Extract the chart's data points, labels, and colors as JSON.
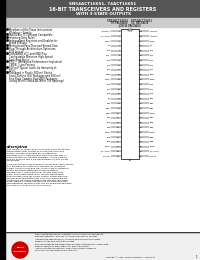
{
  "title_line1": "SN54ACT16651, 74ACT16651",
  "title_line2": "16-BIT TRANSCEIVERS AND REGISTERS",
  "title_line3": "WITH 3-STATE OUTPUTS",
  "bg_color": "#ffffff",
  "header_bg": "#888888",
  "bullet_groups": [
    [
      true,
      "Members of the Texas Instruments"
    ],
    [
      false,
      "Widebus™ Family"
    ],
    [
      true,
      "Inputs Are TTL-Voltage Compatible"
    ],
    [
      true,
      "Inverting Data Paths"
    ],
    [
      true,
      "Independent Registers and Enables for"
    ],
    [
      false,
      "A and B Buses"
    ],
    [
      true,
      "Multiplexed Pass-Thru and Stored Data"
    ],
    [
      true,
      "Flow-Through Architecture Optimizes"
    ],
    [
      false,
      "PCB Layout"
    ],
    [
      true,
      "Distributed VCC and GND Pins"
    ],
    [
      false,
      "Configurable Minimize High-Speed"
    ],
    [
      false,
      "Switching Noise"
    ],
    [
      true,
      "EPIC™ (Enhanced Performance Implanted"
    ],
    [
      false,
      "CMOS) 1-μm Process"
    ],
    [
      true,
      "500-mV Typical Latch-Up Immunity at"
    ],
    [
      false,
      "125°C"
    ],
    [
      true,
      "Packaged in Plastic 300-mil Shrink"
    ],
    [
      false,
      "Small-Outline (DL) Packages and 380-mil"
    ],
    [
      false,
      "Fine-Pitch Ceramic Flat (WD) Packages"
    ],
    [
      false,
      "(using 96-mil Tested-At-Tester Tile Spacings)"
    ]
  ],
  "description_title": "description",
  "desc_para1": "The SN54ACT16651 and 74ACT16651 are 16-bit bus transceivers that consist of 3-type flip-flops and control circuitry arranged for multiplexed transmission of data directly from the data bus or from the internal storage registers. These devices can be used as two 8-bit transceivers or one 16-bit transceiver.",
  "desc_para2": "Complementary output-enable (CEAB and CEBA) inputs are provided to control the transceiver functions. Select-control (SAB and SBA) inputs are provided to select whether registered or stored data is transferred. A low-input level selects pass-thru data, and a high input level selects stored data. The circuitry used for select control eliminates the typical bouncing glitch that occurs in a multiplexer during the transition between stored and real-time data. Figure 1 illustrates the four fundamental bus management functions that can be implemented with the SN54ACT16651 and 74ACT16651.",
  "pin_header_left": "SN54ACT16651",
  "pin_header_right": "SN74ACT16651",
  "pin_header2_left": "FK PACKAGE",
  "pin_header2_right": "DL PACKAGE",
  "pin_header3": "J-OR-W PACKAGE",
  "pin_rows": [
    [
      "1(2846)",
      "2",
      "39",
      "1(2846)",
      "A1OE6A"
    ],
    [
      "5(1,4,56)",
      "4",
      "38",
      "5(1,4,56)",
      "A1OE6A"
    ],
    [
      "C048",
      "5",
      "37",
      "C048",
      "C048"
    ],
    [
      "14",
      "6",
      "36",
      "14",
      "14"
    ],
    [
      "143",
      "7",
      "35",
      "143",
      "143"
    ],
    [
      "FCC",
      "8",
      "34",
      "FCC",
      "KCC"
    ],
    [
      "142",
      "9",
      "33",
      "142",
      "462"
    ],
    [
      "141",
      "10",
      "32",
      "141",
      "481"
    ],
    [
      "140",
      "11",
      "31",
      "140",
      "481"
    ],
    [
      "GND",
      "12",
      "30",
      "GND",
      "GND"
    ],
    [
      "C048",
      "13",
      "29",
      "C048",
      "C048"
    ],
    [
      "146",
      "14",
      "28",
      "146",
      "486"
    ],
    [
      "147",
      "15",
      "27",
      "147",
      "487"
    ],
    [
      "148",
      "16",
      "26",
      "148",
      "488"
    ],
    [
      "64",
      "17",
      "25",
      "64",
      "B84"
    ],
    [
      "642",
      "18",
      "24",
      "642",
      "B82"
    ],
    [
      "B43",
      "19",
      "23",
      "B43",
      "B83"
    ],
    [
      "GND",
      "20",
      "22",
      "GND",
      "C048"
    ],
    [
      "644",
      "21",
      "21",
      "644",
      "B84"
    ],
    [
      "645",
      "22",
      "20",
      "645",
      "B85"
    ],
    [
      "646",
      "23",
      "19",
      "646",
      "B86"
    ],
    [
      "C048",
      "24",
      "18",
      "C048",
      "C048"
    ],
    [
      "649",
      "25",
      "17",
      "649",
      "B89"
    ],
    [
      "648",
      "26",
      "16",
      "648",
      "B88"
    ],
    [
      "C048",
      "27",
      "15",
      "C048",
      "C048"
    ],
    [
      "5(1,4,56)",
      "28",
      "14",
      "5(1,4,56)",
      "5(1,4,56)"
    ],
    [
      "VCC48",
      "29",
      "13",
      "VCC48",
      "VCC48"
    ]
  ],
  "footer_notice": "Please be aware that an important notice concerning availability, standard warranty, and use in critical applications of Texas Instruments semiconductor products and disclaimers thereto appears at the end of this data sheet.",
  "footer_trademark": "EPIC and Widebus are trademarks of Texas Instruments Incorporated.",
  "footer_conform": "Products conform to specifications per the terms of Texas Instruments standard warranty. Production processing does not necessarily include testing of all parameters.",
  "copyright": "Copyright © 1998, Texas Instruments Incorporated",
  "page_num": "1"
}
